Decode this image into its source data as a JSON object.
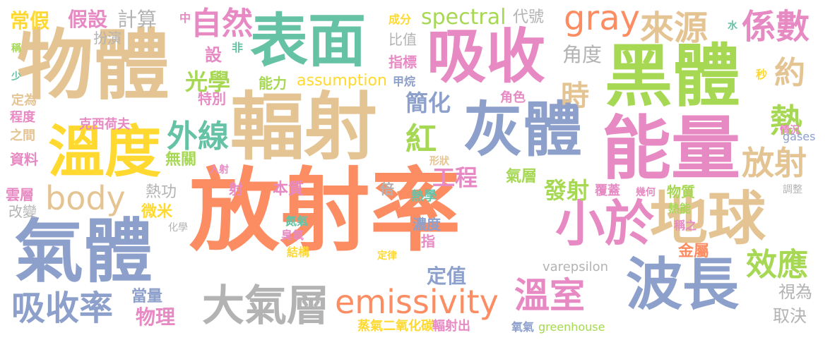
{
  "colors": {
    "orange": "#fc8d62",
    "tan": "#e5c494",
    "blue": "#8da0cb",
    "green": "#66c2a5",
    "lime": "#a6d854",
    "pink": "#e78ac3",
    "yellow": "#ffd92f",
    "gray": "#b3b3b3"
  },
  "words": [
    {
      "text": "放射率",
      "color": "orange"
    },
    {
      "text": "物體",
      "color": "tan"
    },
    {
      "text": "表面",
      "color": "green"
    },
    {
      "text": "吸收",
      "color": "pink"
    },
    {
      "text": "黑體",
      "color": "lime"
    },
    {
      "text": "輻射",
      "color": "tan"
    },
    {
      "text": "灰體",
      "color": "blue"
    },
    {
      "text": "能量",
      "color": "pink"
    },
    {
      "text": "氣體",
      "color": "blue"
    },
    {
      "text": "溫度",
      "color": "yellow"
    },
    {
      "text": "地球",
      "color": "tan"
    },
    {
      "text": "小於",
      "color": "pink"
    },
    {
      "text": "波長",
      "color": "blue"
    },
    {
      "text": "大氣層",
      "color": "gray"
    },
    {
      "text": "emissivity",
      "color": "orange"
    },
    {
      "text": "吸收率",
      "color": "blue"
    },
    {
      "text": "溫室",
      "color": "pink"
    },
    {
      "text": "係數",
      "color": "pink"
    },
    {
      "text": "來源",
      "color": "tan"
    },
    {
      "text": "gray",
      "color": "orange"
    },
    {
      "text": "自然",
      "color": "pink"
    },
    {
      "text": "外線",
      "color": "green"
    },
    {
      "text": "body",
      "color": "tan"
    },
    {
      "text": "放射",
      "color": "tan"
    },
    {
      "text": "效應",
      "color": "lime"
    },
    {
      "text": "熱",
      "color": "lime"
    },
    {
      "text": "紅",
      "color": "lime"
    },
    {
      "text": "約",
      "color": "tan"
    },
    {
      "text": "時",
      "color": "tan"
    },
    {
      "text": "簡化",
      "color": "blue"
    },
    {
      "text": "光學",
      "color": "lime"
    },
    {
      "text": "spectral",
      "color": "lime"
    },
    {
      "text": "assumption",
      "color": "yellow"
    },
    {
      "text": "工程",
      "color": "pink"
    },
    {
      "text": "發射",
      "color": "lime"
    },
    {
      "text": "定值",
      "color": "blue"
    },
    {
      "text": "物理",
      "color": "pink"
    },
    {
      "text": "當量",
      "color": "blue"
    },
    {
      "text": "常假",
      "color": "yellow"
    },
    {
      "text": "假設",
      "color": "pink"
    },
    {
      "text": "計算",
      "color": "gray"
    },
    {
      "text": "設",
      "color": "pink"
    },
    {
      "text": "角度",
      "color": "gray"
    },
    {
      "text": "無關",
      "color": "lime"
    },
    {
      "text": "熱功",
      "color": "gray"
    },
    {
      "text": "本質",
      "color": "pink"
    },
    {
      "text": "取決",
      "color": "gray"
    },
    {
      "text": "視為",
      "color": "gray"
    },
    {
      "text": "varepsilon",
      "color": "gray"
    },
    {
      "text": "金屬",
      "color": "orange"
    },
    {
      "text": "物質",
      "color": "lime"
    },
    {
      "text": "氣層",
      "color": "lime"
    },
    {
      "text": "覆蓋",
      "color": "pink"
    },
    {
      "text": "能力",
      "color": "lime"
    },
    {
      "text": "特別",
      "color": "pink"
    },
    {
      "text": "射",
      "color": "pink"
    },
    {
      "text": "微米",
      "color": "yellow"
    },
    {
      "text": "倍",
      "color": "gray"
    },
    {
      "text": "熱學",
      "color": "green"
    },
    {
      "text": "濃度",
      "color": "blue"
    },
    {
      "text": "指",
      "color": "pink"
    },
    {
      "text": "蒸氣二氧化碳",
      "color": "yellow"
    },
    {
      "text": "輻射出",
      "color": "pink"
    },
    {
      "text": "氧氣",
      "color": "blue"
    },
    {
      "text": "greenhouse",
      "color": "lime"
    },
    {
      "text": "代號",
      "color": "gray"
    },
    {
      "text": "指標",
      "color": "pink"
    },
    {
      "text": "比值",
      "color": "gray"
    },
    {
      "text": "成分",
      "color": "yellow"
    },
    {
      "text": "甲烷",
      "color": "blue"
    },
    {
      "text": "角色",
      "color": "pink"
    },
    {
      "text": "中",
      "color": "pink"
    },
    {
      "text": "扮演",
      "color": "gray"
    },
    {
      "text": "非",
      "color": "green"
    },
    {
      "text": "水",
      "color": "green"
    },
    {
      "text": "秒",
      "color": "yellow"
    },
    {
      "text": "情況",
      "color": "pink"
    },
    {
      "text": "gases",
      "color": "blue"
    },
    {
      "text": "幾何",
      "color": "pink"
    },
    {
      "text": "調整",
      "color": "gray"
    },
    {
      "text": "熱能",
      "color": "lime"
    },
    {
      "text": "稱之",
      "color": "pink"
    },
    {
      "text": "克西荷夫",
      "color": "pink"
    },
    {
      "text": "定為",
      "color": "tan"
    },
    {
      "text": "程度",
      "color": "pink"
    },
    {
      "text": "之間",
      "color": "tan"
    },
    {
      "text": "資料",
      "color": "pink"
    },
    {
      "text": "雲層",
      "color": "pink"
    },
    {
      "text": "改變",
      "color": "gray"
    },
    {
      "text": "稱",
      "color": "lime"
    },
    {
      "text": "少",
      "color": "green"
    },
    {
      "text": "入射",
      "color": "pink"
    },
    {
      "text": "形狀",
      "color": "tan"
    },
    {
      "text": "氮氣",
      "color": "green"
    },
    {
      "text": "臭氧",
      "color": "pink"
    },
    {
      "text": "結構",
      "color": "yellow"
    },
    {
      "text": "定律",
      "color": "yellow"
    },
    {
      "text": "化學",
      "color": "gray"
    }
  ]
}
